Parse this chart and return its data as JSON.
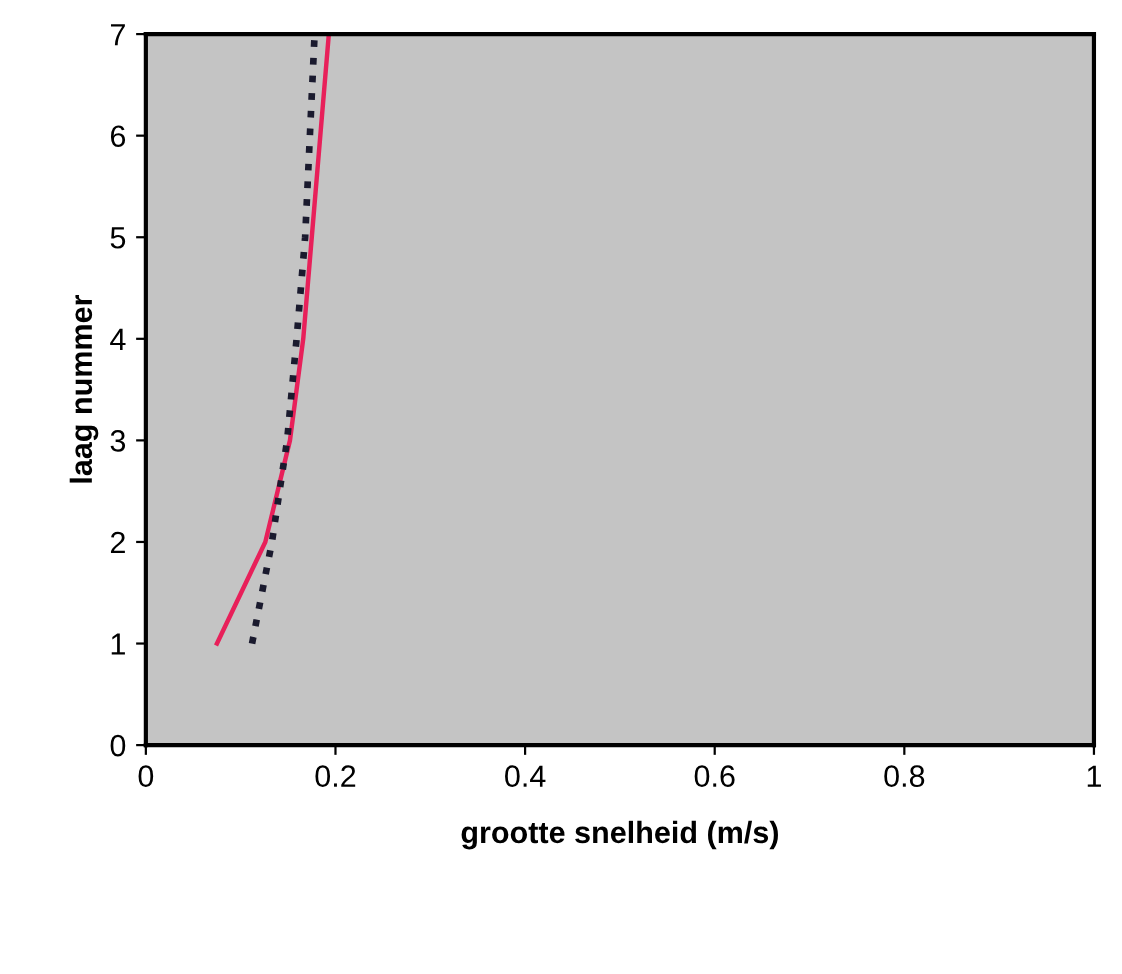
{
  "chart_data": {
    "type": "line",
    "xlabel": "grootte snelheid (m/s)",
    "ylabel": "laag nummer",
    "xlim": [
      0,
      1
    ],
    "xticks": [
      0,
      0.2,
      0.4,
      0.6,
      0.8,
      1
    ],
    "ylim": [
      0,
      7
    ],
    "yticks": [
      0,
      1,
      2,
      3,
      4,
      5,
      6,
      7
    ],
    "grid": false,
    "legend": false,
    "series": [
      {
        "color": "#e8205a",
        "line_style": "solid",
        "x": [
          0.075,
          0.126,
          0.152,
          0.166,
          0.175,
          0.184,
          0.193
        ],
        "values": [
          1,
          2,
          3,
          4,
          5,
          6,
          7
        ]
      },
      {
        "color": "#1a1a2e",
        "line_style": "dotted",
        "x": [
          0.112,
          0.133,
          0.149,
          0.159,
          0.168,
          0.173,
          0.178
        ],
        "values": [
          1,
          2,
          3,
          4,
          5,
          6,
          7
        ]
      }
    ]
  }
}
